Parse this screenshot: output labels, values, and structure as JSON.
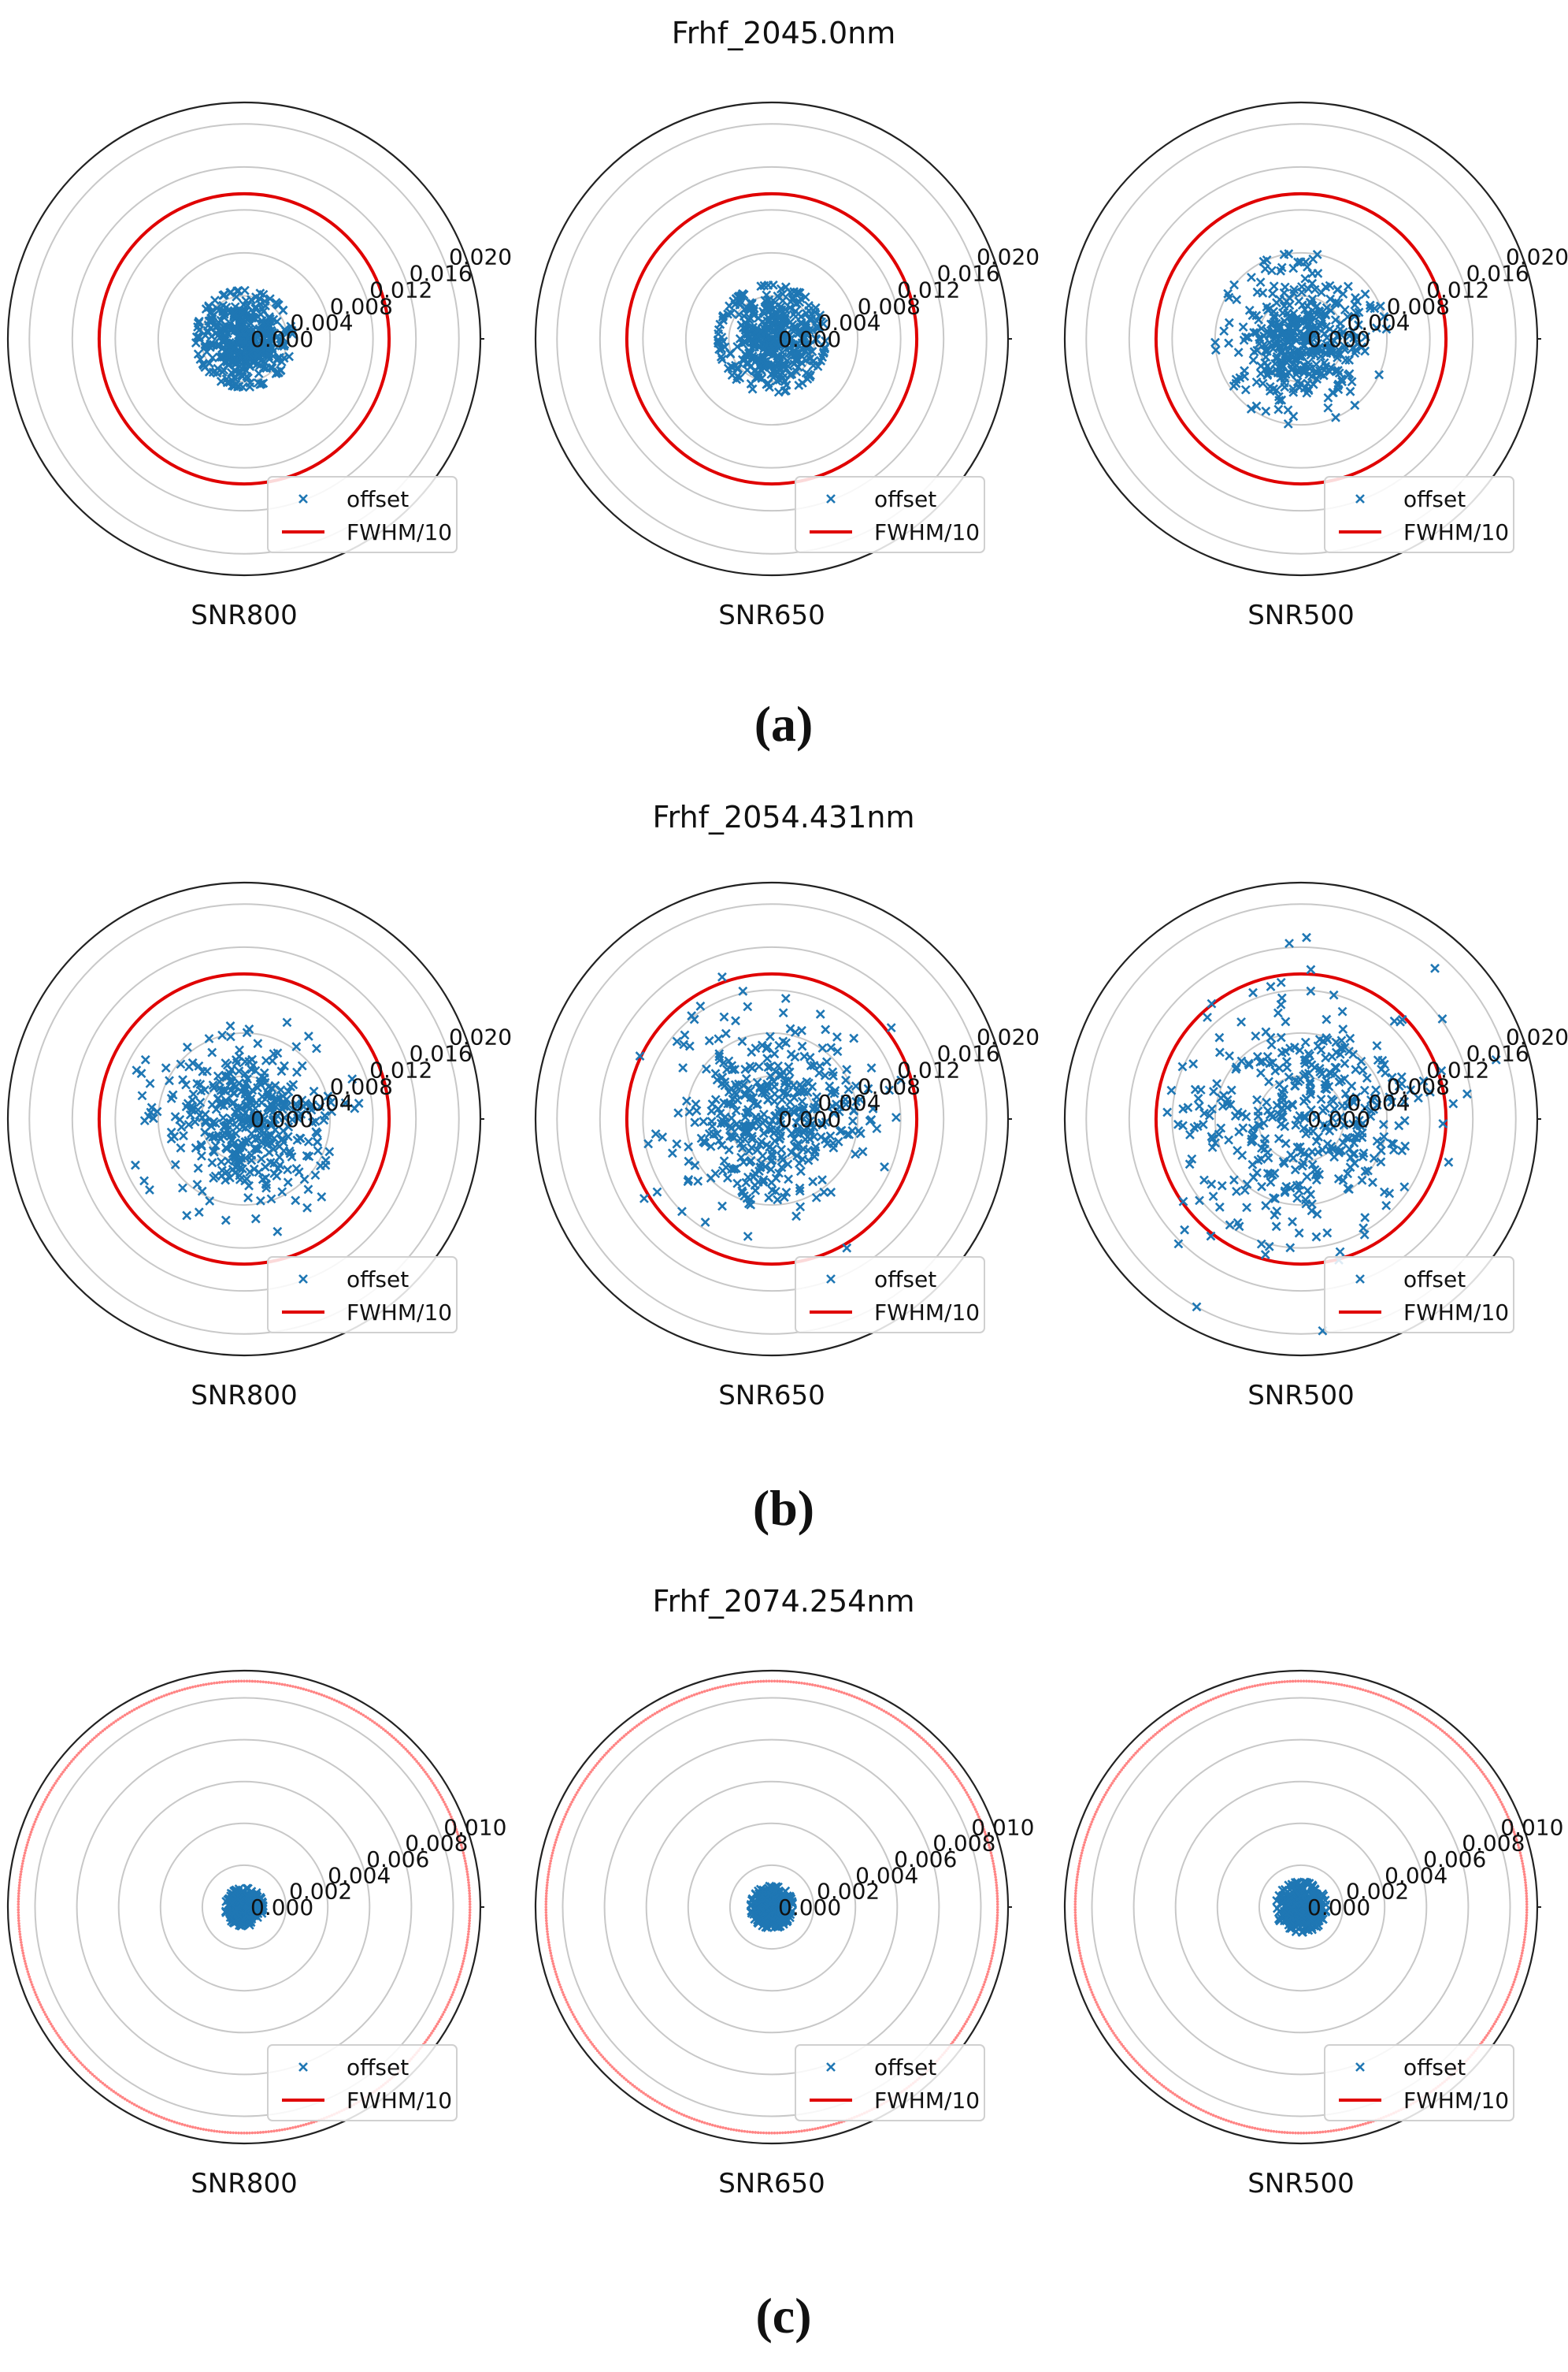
{
  "colors": {
    "offset": "#1f77b4",
    "fwhm": "#e00000",
    "grid": "#c8c8c8",
    "outer": "#222222",
    "text": "#111111"
  },
  "legend": {
    "offset_label": "offset",
    "fwhm_label": "FWHM/10"
  },
  "chart_data": [
    {
      "type": "scatter",
      "panel_label": "(a)",
      "title": "Frhf_2045.0nm",
      "r_ticks": [
        "0.000",
        "0.004",
        "0.008",
        "0.012",
        "0.016",
        "0.020"
      ],
      "r_max": 0.022,
      "fwhm_radius": 0.0135,
      "subplots": [
        {
          "xlabel": "SNR800",
          "spread": 0.0021,
          "max_r": 0.0045
        },
        {
          "xlabel": "SNR650",
          "spread": 0.0024,
          "max_r": 0.005
        },
        {
          "xlabel": "SNR500",
          "spread": 0.003,
          "max_r": 0.008
        }
      ]
    },
    {
      "type": "scatter",
      "panel_label": "(b)",
      "title": "Frhf_2054.431nm",
      "r_ticks": [
        "0.000",
        "0.004",
        "0.008",
        "0.012",
        "0.016",
        "0.020"
      ],
      "r_max": 0.022,
      "fwhm_radius": 0.0135,
      "subplots": [
        {
          "xlabel": "SNR800",
          "spread": 0.0036,
          "max_r": 0.011
        },
        {
          "xlabel": "SNR650",
          "spread": 0.0044,
          "max_r": 0.014
        },
        {
          "xlabel": "SNR500",
          "spread": 0.0055,
          "max_r": 0.02
        }
      ]
    },
    {
      "type": "scatter",
      "panel_label": "(c)",
      "title": "Frhf_2074.254nm",
      "r_ticks": [
        "0.000",
        "0.002",
        "0.004",
        "0.006",
        "0.008",
        "0.010"
      ],
      "r_max": 0.0113,
      "fwhm_radius": 0.0108,
      "subplots": [
        {
          "xlabel": "SNR800",
          "spread": 0.00038,
          "max_r": 0.0009
        },
        {
          "xlabel": "SNR650",
          "spread": 0.00042,
          "max_r": 0.001
        },
        {
          "xlabel": "SNR500",
          "spread": 0.0005,
          "max_r": 0.0012
        }
      ]
    }
  ]
}
